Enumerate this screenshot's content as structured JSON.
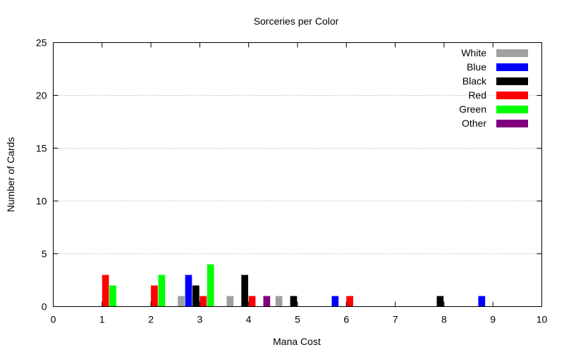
{
  "chart_data": {
    "type": "bar",
    "title": "Sorceries per Color",
    "xlabel": "Mana Cost",
    "ylabel": "Number of Cards",
    "xlim": [
      0,
      10
    ],
    "ylim": [
      0,
      25
    ],
    "x_ticks": [
      "0",
      "1",
      "2",
      "3",
      "4",
      "5",
      "6",
      "7",
      "8",
      "9",
      "10"
    ],
    "y_ticks": [
      "0",
      "5",
      "10",
      "15",
      "20",
      "25"
    ],
    "grid": "horizontal dotted",
    "legend_position": "top-right",
    "bar_width": 0.14,
    "series": [
      {
        "name": "White",
        "color": "#a0a0a0",
        "points": [
          {
            "x": 2.62,
            "y": 1
          },
          {
            "x": 3.62,
            "y": 1
          },
          {
            "x": 4.62,
            "y": 1
          }
        ]
      },
      {
        "name": "Blue",
        "color": "#0000ff",
        "points": [
          {
            "x": 2.77,
            "y": 3
          },
          {
            "x": 5.77,
            "y": 1
          },
          {
            "x": 8.77,
            "y": 1
          }
        ]
      },
      {
        "name": "Black",
        "color": "#000000",
        "points": [
          {
            "x": 2.92,
            "y": 2
          },
          {
            "x": 3.92,
            "y": 3
          },
          {
            "x": 4.92,
            "y": 1
          },
          {
            "x": 7.92,
            "y": 1
          }
        ]
      },
      {
        "name": "Red",
        "color": "#ff0000",
        "points": [
          {
            "x": 1.07,
            "y": 3
          },
          {
            "x": 2.07,
            "y": 2
          },
          {
            "x": 3.07,
            "y": 1
          },
          {
            "x": 4.07,
            "y": 1
          },
          {
            "x": 6.07,
            "y": 1
          }
        ]
      },
      {
        "name": "Green",
        "color": "#00ff00",
        "points": [
          {
            "x": 1.22,
            "y": 2
          },
          {
            "x": 2.22,
            "y": 3
          },
          {
            "x": 3.22,
            "y": 4
          }
        ]
      },
      {
        "name": "Other",
        "color": "#800080",
        "points": [
          {
            "x": 4.37,
            "y": 1
          }
        ]
      }
    ]
  }
}
